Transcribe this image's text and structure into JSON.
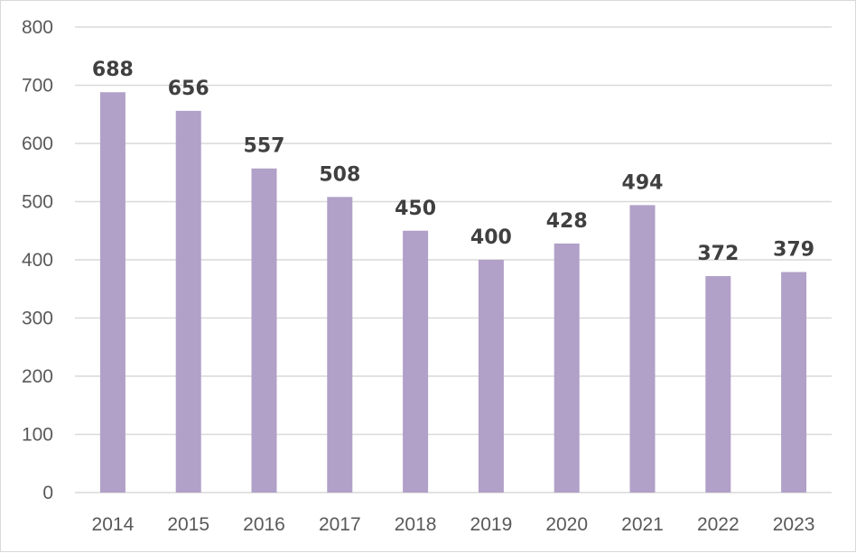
{
  "chart_data": {
    "type": "bar",
    "title": "",
    "xlabel": "",
    "ylabel": "",
    "categories": [
      "2014",
      "2015",
      "2016",
      "2017",
      "2018",
      "2019",
      "2020",
      "2021",
      "2022",
      "2023"
    ],
    "values": [
      688,
      656,
      557,
      508,
      450,
      400,
      428,
      494,
      372,
      379
    ],
    "ylim": [
      0,
      800
    ],
    "yticks": [
      0,
      100,
      200,
      300,
      400,
      500,
      600,
      700,
      800
    ],
    "grid": true,
    "legend": "none",
    "data_labels": true,
    "colors": {
      "bar": "#b1a0c7",
      "gridline": "#d9d9d9",
      "axis_text": "#595959",
      "data_label_text": "#404040"
    }
  }
}
